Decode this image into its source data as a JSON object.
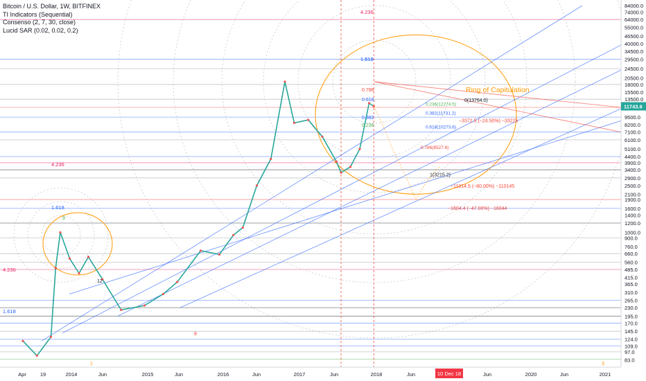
{
  "legend": {
    "title": "Bitcoin / U.S. Dollar, 1W, BITFINEX",
    "indicator_1": "TI Indicators (Sequential)",
    "indicator_2": "Consenso (2, 7, 30, close)",
    "indicator_3": "Lucid SAR (0.02, 0.02, 0.2)"
  },
  "chart_data": {
    "type": "line",
    "title": "Bitcoin / U.S. Dollar, 1W, BITFINEX",
    "ylabel": "",
    "xlabel": "",
    "y_scale": "log",
    "ylim": [
      78,
      90000
    ],
    "x_ticks": [
      "Apr",
      "19",
      "2014",
      "Jun",
      "2015",
      "Jun",
      "2016",
      "Jun",
      "2017",
      "Jun",
      "2018",
      "Jun",
      "10 Dec 18",
      "Jun",
      "2020",
      "Jun",
      "2021"
    ],
    "y_ticks": [
      83,
      97,
      109,
      124,
      145,
      170,
      195,
      230,
      265,
      310,
      365,
      415,
      485,
      560,
      660,
      760,
      900,
      1000,
      1200,
      1400,
      1600,
      1900,
      2100,
      2500,
      2900,
      3400,
      3900,
      4400,
      5100,
      6100,
      7100,
      8200,
      9500,
      11500,
      13500,
      15500,
      18000,
      20500,
      24500,
      29500,
      34500,
      40000,
      46500,
      55000,
      64000,
      74000,
      84000
    ],
    "current_price_label": "11743.9",
    "current_price": 11743.9,
    "series": [
      {
        "name": "BTCUSD",
        "x": [
          "2013-04",
          "2013-07",
          "2013-10",
          "2013-11",
          "2013-12",
          "2014-02",
          "2014-04",
          "2014-06",
          "2014-09",
          "2015-01",
          "2015-06",
          "2015-10",
          "2016-01",
          "2016-06",
          "2016-10",
          "2017-01",
          "2017-03",
          "2017-06",
          "2017-09",
          "2017-12",
          "2018-02",
          "2018-05",
          "2018-08",
          "2018-11",
          "2018-12",
          "2019-02",
          "2019-04",
          "2019-06",
          "2019-07"
        ],
        "values": [
          120,
          90,
          130,
          500,
          1000,
          600,
          450,
          620,
          400,
          220,
          240,
          300,
          380,
          700,
          650,
          950,
          1100,
          2500,
          4200,
          19000,
          8500,
          9000,
          6500,
          4000,
          3215,
          3600,
          5100,
          12500,
          11743.9
        ]
      }
    ],
    "annotations": [
      "Ring of Capitulation",
      "0(13764.0)",
      "1(3215.2)",
      "−3372.5 (−24.50%) −33225",
      "−11014.5 (−80.00%) −110145",
      "−1604.4 (−47.00%) −16044",
      "4.236",
      "1.618",
      "0.786",
      "0.618",
      "0.382",
      "0.236",
      "0.786(8527.6)",
      "0.618(10273.6)",
      "0.382(11731.2)",
      "0.236(12274.5)",
      "1.618",
      "1",
      "3",
      "12",
      "8",
      "9"
    ]
  }
}
